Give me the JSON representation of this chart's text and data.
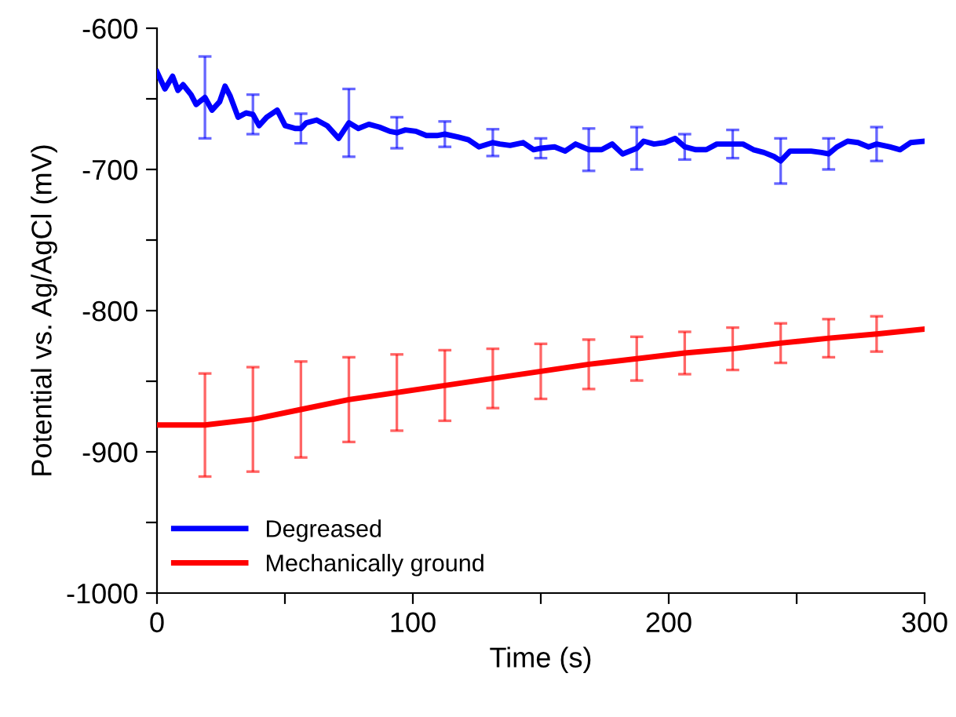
{
  "chart_data": {
    "type": "line",
    "xlabel": "Time (s)",
    "ylabel": "Potential vs. Ag/AgCl (mV)",
    "xlim": [
      0,
      300
    ],
    "ylim": [
      -1000,
      -600
    ],
    "xticks": [
      0,
      {
        "value": 50,
        "label": null
      },
      100,
      {
        "value": 150,
        "label": null
      },
      200,
      {
        "value": 250,
        "label": null
      },
      300
    ],
    "yticks": [
      -1000,
      {
        "value": -950,
        "label": null
      },
      -900,
      {
        "value": -850,
        "label": null
      },
      -800,
      {
        "value": -750,
        "label": null
      },
      -700,
      {
        "value": -650,
        "label": null
      },
      -600
    ],
    "grid": false,
    "legend": "bottom left",
    "marker": "none",
    "line_style": "solid",
    "series": [
      {
        "name": "Degreased",
        "color": "#0000ff",
        "x": [
          0,
          3.1,
          6.1,
          8.2,
          10.2,
          13.3,
          15.3,
          18.75,
          21.5,
          24.5,
          26.6,
          28.6,
          31.7,
          34.8,
          37.5,
          39.9,
          42.9,
          47.0,
          50.1,
          54.2,
          56.25,
          58.3,
          62.4,
          66.5,
          71.0,
          75,
          78.7,
          82.8,
          86.9,
          91.0,
          93.75,
          97.1,
          101.2,
          105.3,
          109.4,
          112.5,
          117.6,
          121.7,
          125.8,
          131.25,
          134.0,
          138.0,
          143.1,
          147.2,
          150,
          155.4,
          159.5,
          163.6,
          168.75,
          173.8,
          177.9,
          182.0,
          187.5,
          190.2,
          194.3,
          198.4,
          202.5,
          206.25,
          210.6,
          214.7,
          218.8,
          225,
          229.0,
          233.1,
          237.2,
          241.3,
          243.75,
          247.4,
          251.5,
          255.6,
          259.7,
          262.5,
          265.8,
          269.9,
          274.0,
          278.1,
          281.25,
          286.3,
          290.4,
          294.5,
          300
        ],
        "values": [
          -631,
          -643,
          -634,
          -644,
          -640,
          -647,
          -654,
          -649,
          -658,
          -652,
          -641,
          -648,
          -663,
          -660,
          -661,
          -669,
          -663,
          -658,
          -669,
          -671,
          -671,
          -667,
          -665,
          -669,
          -678,
          -667,
          -671,
          -668,
          -670,
          -673,
          -674,
          -672,
          -673,
          -676,
          -676,
          -675,
          -677,
          -679,
          -684,
          -681,
          -682,
          -683,
          -681,
          -686,
          -685,
          -684,
          -687,
          -682,
          -686,
          -686,
          -682,
          -689,
          -685,
          -680,
          -682,
          -681,
          -678,
          -684,
          -686,
          -686,
          -682,
          -682,
          -682,
          -686,
          -688,
          -691,
          -694,
          -687,
          -687,
          -687,
          -688,
          -689,
          -684,
          -680,
          -681,
          -684,
          -682,
          -684,
          -686,
          -681,
          -680
        ],
        "errors": [
          null,
          null,
          null,
          null,
          null,
          null,
          null,
          29,
          null,
          null,
          null,
          null,
          null,
          null,
          14,
          null,
          null,
          null,
          null,
          null,
          10.5,
          null,
          null,
          null,
          null,
          24,
          null,
          null,
          null,
          null,
          11,
          null,
          null,
          null,
          null,
          9,
          null,
          null,
          null,
          9.5,
          null,
          null,
          null,
          null,
          7,
          null,
          null,
          null,
          15,
          null,
          null,
          null,
          15,
          null,
          null,
          null,
          null,
          9,
          null,
          null,
          null,
          10,
          null,
          null,
          null,
          null,
          16,
          null,
          null,
          null,
          null,
          11,
          null,
          null,
          null,
          null,
          12,
          null,
          null,
          null,
          null
        ]
      },
      {
        "name": "Mechanically ground",
        "color": "#ff0000",
        "x": [
          0,
          18.75,
          37.5,
          56.25,
          75,
          93.75,
          112.5,
          131.25,
          150,
          168.75,
          187.5,
          206.25,
          225,
          243.75,
          262.5,
          281.25,
          300
        ],
        "values": [
          -881,
          -881,
          -877,
          -870,
          -863,
          -858,
          -853,
          -848,
          -843,
          -838,
          -834,
          -830,
          -827,
          -823,
          -819.5,
          -816.5,
          -813
        ],
        "errors": [
          null,
          36.5,
          37,
          34,
          30,
          27,
          25,
          21,
          19.5,
          17.5,
          15.5,
          15,
          15,
          14,
          13.5,
          12.5,
          null
        ]
      }
    ]
  }
}
